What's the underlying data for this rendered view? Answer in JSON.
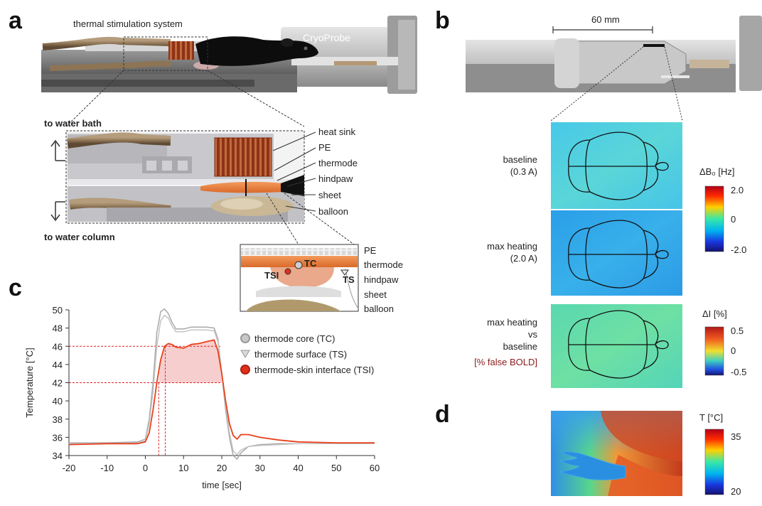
{
  "panel_labels": {
    "a": "a",
    "b": "b",
    "c": "c",
    "d": "d"
  },
  "panel_a": {
    "title": "thermal stimulation system",
    "cryoprobe": "CryoProbe",
    "to_water_bath": "to water bath",
    "to_water_column": "to water column",
    "callouts": [
      "heat sink",
      "PE",
      "thermode",
      "hindpaw",
      "sheet",
      "balloon"
    ],
    "inset_labels": [
      "PE",
      "thermode",
      "hindpaw",
      "sheet",
      "balloon"
    ],
    "inset_points": {
      "tc": "TC",
      "tsi": "TSI",
      "ts": "TS"
    }
  },
  "panel_b": {
    "scale_bar": "60 mm",
    "rows": [
      {
        "line1": "baseline",
        "line2": "(0.3 A)"
      },
      {
        "line1": "max heating",
        "line2": "(2.0 A)"
      },
      {
        "line1": "max heating",
        "line2": "vs",
        "line3": "baseline",
        "line4": "[% false BOLD]"
      }
    ],
    "colorbar1": {
      "title": "ΔB₀ [Hz]",
      "max": "2.0",
      "mid": "0",
      "min": "-2.0"
    },
    "colorbar2": {
      "title": "ΔI [%]",
      "max": "0.5",
      "mid": "0",
      "min": "-0.5"
    },
    "accent": "#8b1a1a"
  },
  "panel_d": {
    "colorbar": {
      "title": "T [°C]",
      "max": "35",
      "min": "20"
    }
  },
  "chart_data": {
    "type": "line",
    "xlabel": "time [sec]",
    "ylabel": "Temperature [°C]",
    "xlim": [
      -20,
      60
    ],
    "ylim": [
      34,
      50
    ],
    "xticks": [
      -20,
      -10,
      0,
      10,
      20,
      30,
      40,
      50,
      60
    ],
    "yticks": [
      34,
      36,
      38,
      40,
      42,
      44,
      46,
      48,
      50
    ],
    "legend_position": "right",
    "reference_lines": {
      "y": [
        42,
        46
      ],
      "x": [
        3.5,
        5.2
      ],
      "color": "#d22"
    },
    "shaded_band": {
      "y_low": 42,
      "x_from": 3.5,
      "x_to": 20,
      "color": "#f6c9c9"
    },
    "series": [
      {
        "name": "thermode core (TC)",
        "color": "#a8a8a8",
        "x": [
          -20,
          -10,
          -2,
          0,
          1,
          2,
          3,
          4,
          5,
          6,
          7,
          8,
          10,
          12,
          14,
          16,
          18,
          19,
          20,
          21,
          22,
          23,
          24,
          25,
          27,
          30,
          35,
          40,
          50,
          60
        ],
        "y": [
          35.4,
          35.4,
          35.5,
          35.8,
          38,
          42,
          47.5,
          49.8,
          50.1,
          49.6,
          48.6,
          47.9,
          47.9,
          48.1,
          48.1,
          48.1,
          48,
          46.8,
          43,
          39,
          36,
          34,
          33.6,
          34.3,
          35,
          35.2,
          35.3,
          35.3,
          35.3,
          35.3
        ]
      },
      {
        "name": "thermode surface (TS)",
        "color": "#c4c4c4",
        "x": [
          -20,
          -10,
          -2,
          0,
          1,
          2,
          3,
          4,
          5,
          6,
          7,
          8,
          10,
          12,
          14,
          16,
          18,
          19,
          20,
          21,
          22,
          23,
          24,
          25,
          27,
          30,
          35,
          40,
          50,
          60
        ],
        "y": [
          35.3,
          35.3,
          35.4,
          35.6,
          37.5,
          41,
          46,
          48.8,
          49.4,
          49.1,
          48.2,
          47.6,
          47.6,
          47.8,
          47.8,
          47.8,
          47.7,
          46.5,
          43,
          39.5,
          36.5,
          34.5,
          34.1,
          34.6,
          35,
          35.1,
          35.2,
          35.3,
          35.3,
          35.3
        ]
      },
      {
        "name": "thermode-skin interface (TSI)",
        "color": "#e8401c",
        "x": [
          -20,
          -10,
          -2,
          0,
          1,
          2,
          3,
          4,
          5,
          6,
          7,
          8,
          10,
          12,
          14,
          16,
          18,
          19,
          20,
          21,
          22,
          23,
          24,
          25,
          27,
          30,
          35,
          40,
          50,
          60
        ],
        "y": [
          35.2,
          35.3,
          35.3,
          35.5,
          36.5,
          39,
          42,
          44.5,
          46,
          46.3,
          46.2,
          45.9,
          45.8,
          46.2,
          46.3,
          46.5,
          46.7,
          45.5,
          43,
          40,
          37.5,
          36.2,
          35.8,
          36.3,
          36.3,
          36,
          35.7,
          35.5,
          35.4,
          35.4
        ]
      }
    ]
  }
}
